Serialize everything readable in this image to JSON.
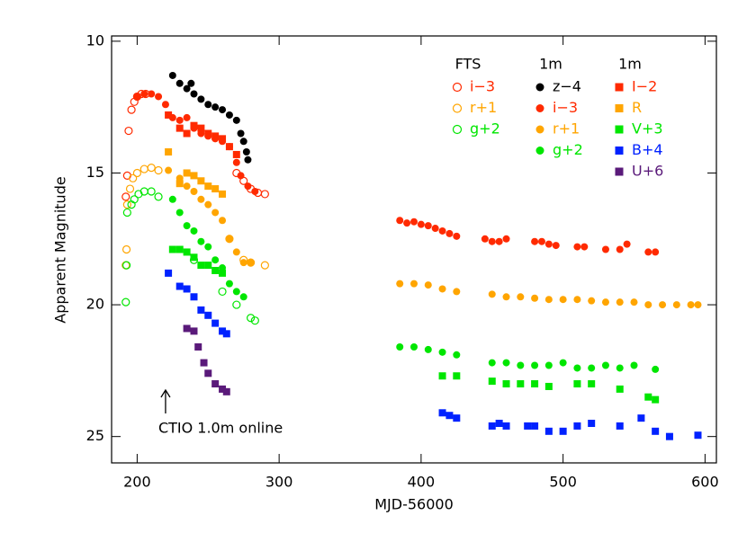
{
  "chart_data": {
    "type": "scatter",
    "xlabel": "MJD-56000",
    "ylabel": "Apparent Magnitude",
    "xlim": [
      182,
      608
    ],
    "ylim": [
      26,
      9.8
    ],
    "xticks": [
      200,
      300,
      400,
      500,
      600
    ],
    "yticks": [
      10,
      15,
      20,
      25
    ],
    "annotation": {
      "text": "CTIO 1.0m online",
      "x": 220
    },
    "groups": [
      {
        "name": "FTS",
        "marker": "open-circle",
        "series": [
          {
            "name": "i−3",
            "color": "#ff2a00",
            "x": [
              192,
              193,
              194,
              196,
              198,
              200,
              203,
              206,
              270,
              275,
              280,
              285,
              290
            ],
            "values": [
              15.9,
              15.1,
              13.4,
              12.6,
              12.3,
              12.1,
              12.0,
              12.0,
              15.0,
              15.3,
              15.6,
              15.75,
              15.8
            ]
          },
          {
            "name": "r+1",
            "color": "#ffa500",
            "x": [
              192,
              192.5,
              193,
              195,
              197,
              200,
              205,
              210,
              215,
              265,
              275,
              280,
              290
            ],
            "values": [
              18.5,
              17.9,
              16.2,
              15.6,
              15.2,
              15.0,
              14.85,
              14.8,
              14.9,
              17.5,
              18.3,
              18.4,
              18.5
            ]
          },
          {
            "name": "g+2",
            "color": "#00e600",
            "x": [
              192,
              192.5,
              193,
              196,
              198,
              201,
              205,
              210,
              215,
              240,
              260,
              270,
              280,
              283
            ],
            "values": [
              19.9,
              18.5,
              16.5,
              16.2,
              16.0,
              15.8,
              15.7,
              15.7,
              15.9,
              18.3,
              19.5,
              20.0,
              20.5,
              20.6
            ]
          }
        ]
      },
      {
        "name": "1m",
        "marker": "filled-circle",
        "series": [
          {
            "name": "z−4",
            "color": "#000000",
            "x": [
              225,
              230,
              235,
              238,
              240,
              245,
              250,
              255,
              260,
              265,
              270,
              273,
              275,
              277,
              278
            ],
            "values": [
              11.3,
              11.6,
              11.8,
              11.6,
              12.0,
              12.2,
              12.4,
              12.5,
              12.6,
              12.8,
              13.0,
              13.5,
              13.8,
              14.2,
              14.5
            ]
          },
          {
            "name": "i−3",
            "color": "#ff2a00",
            "x": [
              200,
              205,
              210,
              215,
              220,
              225,
              230,
              235,
              240,
              245,
              250,
              255,
              260,
              265,
              270,
              273,
              278,
              283,
              385,
              390,
              395,
              400,
              405,
              410,
              415,
              420,
              425,
              445,
              450,
              455,
              460,
              480,
              485,
              490,
              495,
              510,
              515,
              530,
              540,
              545,
              560,
              565
            ],
            "values": [
              12.1,
              12.0,
              12.0,
              12.1,
              12.4,
              12.9,
              13.0,
              12.9,
              13.3,
              13.5,
              13.6,
              13.7,
              13.8,
              14.0,
              14.6,
              15.1,
              15.5,
              15.7,
              16.8,
              16.9,
              16.85,
              16.95,
              17.0,
              17.1,
              17.2,
              17.3,
              17.4,
              17.5,
              17.6,
              17.6,
              17.5,
              17.6,
              17.6,
              17.7,
              17.75,
              17.8,
              17.8,
              17.9,
              17.9,
              17.7,
              18.0,
              18.0
            ]
          },
          {
            "name": "r+1",
            "color": "#ffa500",
            "x": [
              222,
              230,
              235,
              240,
              245,
              250,
              255,
              260,
              265,
              270,
              275,
              280,
              385,
              395,
              405,
              415,
              425,
              450,
              460,
              470,
              480,
              490,
              500,
              510,
              520,
              530,
              540,
              550,
              560,
              570,
              580,
              590,
              595
            ],
            "values": [
              14.9,
              15.2,
              15.5,
              15.7,
              16.0,
              16.2,
              16.5,
              16.8,
              17.5,
              18.0,
              18.4,
              18.4,
              19.2,
              19.2,
              19.25,
              19.4,
              19.5,
              19.6,
              19.7,
              19.7,
              19.75,
              19.8,
              19.8,
              19.8,
              19.85,
              19.9,
              19.9,
              19.9,
              20.0,
              20.0,
              20.0,
              20.0,
              20.0
            ]
          },
          {
            "name": "g+2",
            "color": "#00e600",
            "x": [
              225,
              230,
              235,
              240,
              245,
              250,
              255,
              260,
              265,
              270,
              275,
              385,
              395,
              405,
              415,
              425,
              450,
              460,
              470,
              480,
              490,
              500,
              510,
              520,
              530,
              540,
              550,
              565
            ],
            "values": [
              16.0,
              16.5,
              17.0,
              17.2,
              17.6,
              17.8,
              18.3,
              18.6,
              19.2,
              19.5,
              19.7,
              21.6,
              21.6,
              21.7,
              21.8,
              21.9,
              22.2,
              22.2,
              22.3,
              22.3,
              22.3,
              22.2,
              22.4,
              22.4,
              22.3,
              22.4,
              22.3,
              22.45
            ]
          }
        ]
      },
      {
        "name": "1m",
        "marker": "filled-square",
        "series": [
          {
            "name": "I−2",
            "color": "#ff2a00",
            "x": [
              222,
              230,
              235,
              240,
              245,
              250,
              255,
              260,
              265,
              270
            ],
            "values": [
              12.8,
              13.3,
              13.5,
              13.2,
              13.3,
              13.5,
              13.6,
              13.7,
              14.0,
              14.3
            ]
          },
          {
            "name": "R",
            "color": "#ffa500",
            "x": [
              222,
              230,
              235,
              240,
              245,
              250,
              255,
              260
            ],
            "values": [
              14.2,
              15.4,
              15.0,
              15.1,
              15.3,
              15.5,
              15.6,
              15.8
            ]
          },
          {
            "name": "V+3",
            "color": "#00e600",
            "x": [
              225,
              230,
              235,
              240,
              245,
              250,
              255,
              260,
              415,
              425,
              450,
              460,
              470,
              480,
              490,
              510,
              520,
              540,
              560,
              565
            ],
            "values": [
              17.9,
              17.9,
              18.0,
              18.2,
              18.5,
              18.5,
              18.7,
              18.8,
              22.7,
              22.7,
              22.9,
              23.0,
              23.0,
              23.0,
              23.1,
              23.0,
              23.0,
              23.2,
              23.5,
              23.6
            ]
          },
          {
            "name": "B+4",
            "color": "#0022ff",
            "x": [
              222,
              230,
              235,
              240,
              245,
              250,
              255,
              260,
              263,
              415,
              420,
              425,
              450,
              455,
              460,
              475,
              480,
              490,
              500,
              510,
              520,
              540,
              555,
              565,
              575,
              595
            ],
            "values": [
              18.8,
              19.3,
              19.4,
              19.7,
              20.2,
              20.4,
              20.7,
              21.0,
              21.1,
              24.1,
              24.2,
              24.3,
              24.6,
              24.5,
              24.6,
              24.6,
              24.6,
              24.8,
              24.8,
              24.6,
              24.5,
              24.6,
              24.3,
              24.8,
              25.0,
              24.95
            ]
          },
          {
            "name": "U+6",
            "color": "#5a1a7a",
            "x": [
              235,
              240,
              243,
              247,
              250,
              255,
              260,
              263
            ],
            "values": [
              20.9,
              21.0,
              21.6,
              22.2,
              22.6,
              23.0,
              23.2,
              23.3
            ]
          }
        ]
      }
    ]
  }
}
